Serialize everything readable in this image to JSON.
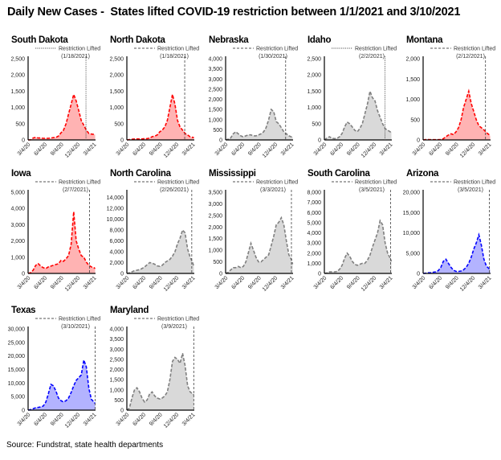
{
  "title": "Daily New Cases -  States lifted COVID-19 restriction between 1/1/2021 and 3/10/2021",
  "source": "Source: Fundstrat, state health departments",
  "colors": {
    "red": {
      "line": "#ff0000",
      "fill": "#ffb3b3"
    },
    "gray": {
      "line": "#7f7f7f",
      "fill": "#d9d9d9"
    },
    "blue": {
      "line": "#0000ff",
      "fill": "#b3b3ff"
    },
    "restriction_line": "#404040"
  },
  "chart_data": {
    "type": "area",
    "legend_label": "Restriction Lifted",
    "x_ticks": [
      "3/4/20",
      "6/4/20",
      "9/4/20",
      "12/4/20",
      "3/4/21"
    ],
    "xlim": [
      "2020-03-04",
      "2021-03-12"
    ],
    "x": [
      "2020-03-04",
      "2020-03-18",
      "2020-04-01",
      "2020-04-15",
      "2020-04-29",
      "2020-05-13",
      "2020-05-27",
      "2020-06-10",
      "2020-06-24",
      "2020-07-08",
      "2020-07-22",
      "2020-08-05",
      "2020-08-19",
      "2020-09-02",
      "2020-09-16",
      "2020-09-30",
      "2020-10-14",
      "2020-10-28",
      "2020-11-11",
      "2020-11-25",
      "2020-12-09",
      "2020-12-23",
      "2021-01-06",
      "2021-01-20",
      "2021-02-03",
      "2021-02-17",
      "2021-03-03",
      "2021-03-10"
    ],
    "panels": [
      {
        "state": "South Dakota",
        "restriction_date": "1/18/2021",
        "restriction_x": "2021-01-18",
        "line_style": "dotted",
        "color": "red",
        "ylim": [
          0,
          2500
        ],
        "y_ticks": [
          "0",
          "500",
          "1,000",
          "1,500",
          "2,000",
          "2,500"
        ],
        "values": [
          0,
          5,
          60,
          80,
          60,
          60,
          50,
          50,
          50,
          60,
          70,
          80,
          120,
          220,
          300,
          500,
          800,
          1100,
          1400,
          1200,
          900,
          600,
          450,
          300,
          200,
          180,
          170,
          160
        ]
      },
      {
        "state": "North Dakota",
        "restriction_date": "1/18/2021",
        "restriction_x": "2021-01-18",
        "line_style": "dashed",
        "color": "red",
        "ylim": [
          0,
          2500
        ],
        "y_ticks": [
          "0",
          "500",
          "1,000",
          "1,500",
          "2,000",
          "2,500"
        ],
        "values": [
          0,
          10,
          20,
          30,
          30,
          30,
          30,
          40,
          40,
          60,
          100,
          120,
          150,
          250,
          300,
          400,
          600,
          1000,
          1400,
          1100,
          600,
          400,
          300,
          200,
          150,
          100,
          80,
          70
        ]
      },
      {
        "state": "Nebraska",
        "restriction_date": "1/30/2021",
        "restriction_x": "2021-01-30",
        "line_style": "dashed",
        "color": "gray",
        "ylim": [
          0,
          4000
        ],
        "y_ticks": [
          "0",
          "500",
          "1,000",
          "1,500",
          "2,000",
          "2,500",
          "3,000",
          "3,500",
          "4,000"
        ],
        "values": [
          0,
          40,
          100,
          300,
          400,
          300,
          200,
          150,
          200,
          250,
          250,
          200,
          200,
          250,
          300,
          400,
          600,
          1000,
          1500,
          1400,
          900,
          800,
          600,
          400,
          300,
          200,
          150,
          150
        ]
      },
      {
        "state": "Idaho",
        "restriction_date": "2/2/2021",
        "restriction_x": "2021-02-02",
        "line_style": "dotted",
        "color": "gray",
        "ylim": [
          0,
          2500
        ],
        "y_ticks": [
          "0",
          "500",
          "1,000",
          "1,500",
          "2,000",
          "2,500"
        ],
        "values": [
          0,
          60,
          100,
          50,
          40,
          50,
          100,
          200,
          400,
          550,
          500,
          400,
          300,
          250,
          350,
          500,
          800,
          1100,
          1500,
          1300,
          1200,
          900,
          700,
          500,
          350,
          300,
          250,
          250
        ]
      },
      {
        "state": "Montana",
        "restriction_date": "2/12/2021",
        "restriction_x": "2021-02-12",
        "line_style": "dashed",
        "color": "red",
        "ylim": [
          0,
          2000
        ],
        "y_ticks": [
          "0",
          "500",
          "1,000",
          "1,500",
          "2,000"
        ],
        "values": [
          0,
          10,
          10,
          5,
          5,
          5,
          5,
          10,
          30,
          80,
          120,
          150,
          130,
          200,
          300,
          500,
          800,
          1000,
          1200,
          900,
          700,
          500,
          350,
          300,
          250,
          180,
          130,
          100
        ]
      },
      {
        "state": "Iowa",
        "restriction_date": "2/7/2021",
        "restriction_x": "2021-02-07",
        "line_style": "dashed",
        "color": "red",
        "ylim": [
          0,
          5000
        ],
        "y_ticks": [
          "0",
          "1,000",
          "2,000",
          "3,000",
          "4,000",
          "5,000"
        ],
        "values": [
          0,
          50,
          200,
          500,
          600,
          450,
          350,
          300,
          400,
          450,
          500,
          550,
          600,
          800,
          750,
          900,
          1100,
          1800,
          3800,
          2000,
          1500,
          1100,
          1000,
          700,
          500,
          400,
          350,
          300
        ]
      },
      {
        "state": "North Carolina",
        "restriction_date": "2/26/2021",
        "restriction_x": "2021-02-26",
        "line_style": "dashed",
        "color": "gray",
        "ylim": [
          0,
          15000
        ],
        "y_ticks": [
          "0",
          "2,000",
          "4,000",
          "6,000",
          "8,000",
          "10,000",
          "12,000",
          "14,000"
        ],
        "values": [
          0,
          100,
          300,
          500,
          600,
          700,
          900,
          1200,
          1600,
          2000,
          1900,
          1700,
          1400,
          1300,
          1500,
          2000,
          2300,
          2600,
          3200,
          4000,
          5500,
          6500,
          8000,
          7500,
          4500,
          3000,
          2000,
          1200
        ]
      },
      {
        "state": "Mississippi",
        "restriction_date": "3/3/2021",
        "restriction_x": "2021-03-03",
        "line_style": "dashed",
        "color": "gray",
        "ylim": [
          0,
          3500
        ],
        "y_ticks": [
          "0",
          "500",
          "1,000",
          "1,500",
          "2,000",
          "2,500",
          "3,000",
          "3,500"
        ],
        "values": [
          0,
          50,
          150,
          250,
          250,
          300,
          250,
          300,
          500,
          900,
          1300,
          1000,
          700,
          500,
          500,
          600,
          700,
          800,
          1200,
          1600,
          2100,
          2200,
          2400,
          2100,
          1400,
          800,
          600,
          400
        ]
      },
      {
        "state": "South Carolina",
        "restriction_date": "3/5/2021",
        "restriction_x": "2021-03-05",
        "line_style": "dashed",
        "color": "gray",
        "ylim": [
          0,
          8000
        ],
        "y_ticks": [
          "0",
          "1,000",
          "2,000",
          "3,000",
          "4,000",
          "5,000",
          "6,000",
          "7,000",
          "8,000"
        ],
        "values": [
          0,
          50,
          150,
          150,
          150,
          200,
          400,
          800,
          1500,
          2000,
          1700,
          1200,
          900,
          800,
          900,
          1000,
          1000,
          1300,
          1800,
          2600,
          3300,
          4000,
          5200,
          4800,
          3000,
          2000,
          1500,
          1200
        ]
      },
      {
        "state": "Arizona",
        "restriction_date": "3/5/2021",
        "restriction_x": "2021-03-05",
        "line_style": "dashed",
        "color": "blue",
        "ylim": [
          0,
          20000
        ],
        "y_ticks": [
          "0",
          "5,000",
          "10,000",
          "15,000",
          "20,000"
        ],
        "values": [
          0,
          50,
          150,
          200,
          300,
          400,
          700,
          1500,
          3000,
          3500,
          2500,
          1500,
          800,
          500,
          500,
          600,
          900,
          1500,
          2500,
          4000,
          6000,
          7500,
          9500,
          7000,
          3500,
          1800,
          1200,
          900
        ]
      },
      {
        "state": "Texas",
        "restriction_date": "3/10/2021",
        "restriction_x": "2021-03-10",
        "line_style": "dashed",
        "color": "blue",
        "ylim": [
          0,
          30000
        ],
        "y_ticks": [
          "0",
          "5,000",
          "10,000",
          "15,000",
          "20,000",
          "25,000",
          "30,000"
        ],
        "values": [
          0,
          200,
          500,
          900,
          1000,
          1200,
          1500,
          3000,
          6000,
          9500,
          9000,
          7000,
          4500,
          3500,
          3000,
          3500,
          4500,
          6500,
          9000,
          11000,
          12000,
          13000,
          18500,
          16000,
          8000,
          4000,
          3000,
          2500
        ]
      },
      {
        "state": "Maryland",
        "restriction_date": "3/9/2021",
        "restriction_x": "2021-03-09",
        "line_style": "dashed",
        "color": "gray",
        "ylim": [
          0,
          4000
        ],
        "y_ticks": [
          "0",
          "500",
          "1,000",
          "1,500",
          "2,000",
          "2,500",
          "3,000",
          "3,500",
          "4,000"
        ],
        "values": [
          0,
          100,
          600,
          1000,
          1100,
          900,
          600,
          400,
          500,
          800,
          900,
          700,
          600,
          550,
          600,
          700,
          900,
          1500,
          2400,
          2600,
          2500,
          2300,
          2800,
          2200,
          1200,
          900,
          800,
          750
        ]
      }
    ]
  }
}
